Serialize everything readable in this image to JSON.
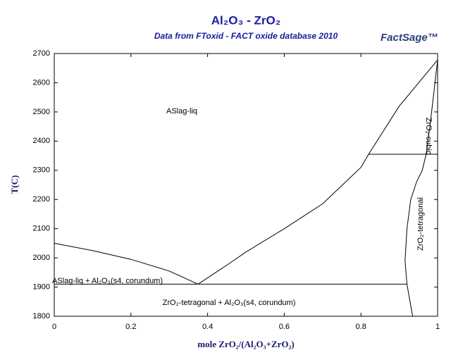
{
  "chart_data": {
    "type": "line",
    "title": "Al₂O₃ - ZrO₂",
    "subtitle": "Data from FToxid - FACT oxide database 2010",
    "logo": "FactSage™",
    "x_label": "mole ZrO₂/(Al₂O₃+ZrO₂)",
    "y_label": "T(C)",
    "xlim": [
      0,
      1
    ],
    "ylim": [
      1800,
      2700
    ],
    "xticks": [
      0,
      0.2,
      0.4,
      0.6,
      0.8,
      1
    ],
    "yticks": [
      1800,
      1900,
      2000,
      2100,
      2200,
      2300,
      2400,
      2500,
      2600,
      2700
    ],
    "grid": false,
    "series": [
      {
        "color": "#000000",
        "x": [
          0,
          0.1,
          0.2,
          0.3,
          0.375
        ],
        "values": [
          2050,
          2025,
          1995,
          1955,
          1910
        ]
      },
      {
        "color": "#000000",
        "x": [
          0.375,
          0.45,
          0.5,
          0.6,
          0.7,
          0.8,
          0.82,
          0.9,
          1
        ],
        "values": [
          1910,
          1975,
          2020,
          2100,
          2185,
          2310,
          2355,
          2520,
          2678
        ]
      },
      {
        "color": "#000000",
        "x": [
          0,
          0.92
        ],
        "values": [
          1910,
          1910
        ]
      },
      {
        "color": "#000000",
        "x": [
          0.82,
          1
        ],
        "values": [
          2355,
          2355
        ]
      },
      {
        "color": "#000000",
        "x": [
          0.935,
          0.92,
          0.915,
          0.92,
          0.93,
          0.945,
          0.96,
          0.97,
          0.98,
          1
        ],
        "values": [
          1800,
          1910,
          1990,
          2100,
          2200,
          2260,
          2300,
          2355,
          2450,
          2678
        ]
      }
    ],
    "annotations": [
      "ASlag-liq",
      "ASlag-liq + Al₂O₃(s4, corundum)",
      "ZrO₂-tetragonal + Al₂O₃(s4, corundum)",
      "ZrO₂-cubic",
      "ZrO₂-tetragonal"
    ]
  }
}
